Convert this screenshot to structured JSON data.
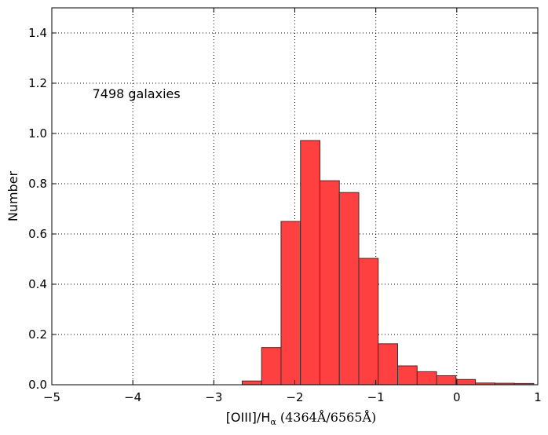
{
  "chart_data": {
    "type": "bar",
    "subtype": "histogram",
    "bin_edges": [
      -2.65,
      -2.41,
      -2.17,
      -1.93,
      -1.69,
      -1.45,
      -1.21,
      -0.97,
      -0.73,
      -0.49,
      -0.25,
      -0.01,
      0.23,
      0.47,
      0.71,
      0.95
    ],
    "values": [
      0.015,
      0.148,
      0.65,
      0.972,
      0.812,
      0.765,
      0.503,
      0.163,
      0.075,
      0.052,
      0.036,
      0.021,
      0.007,
      0.006,
      0.005
    ],
    "bar_color": "#ff4040",
    "edge_color": "#333333",
    "xlim": [
      -5,
      1
    ],
    "ylim": [
      0,
      1.5
    ],
    "xticks": [
      -5,
      -4,
      -3,
      -2,
      -1,
      0,
      1
    ],
    "yticks": [
      0.0,
      0.2,
      0.4,
      0.6,
      0.8,
      1.0,
      1.2,
      1.4
    ],
    "xtick_labels": [
      "−5",
      "−4",
      "−3",
      "−2",
      "−1",
      "0",
      "1"
    ],
    "ytick_labels": [
      "0.0",
      "0.2",
      "0.4",
      "0.6",
      "0.8",
      "1.0",
      "1.2",
      "1.4"
    ],
    "xlabel": "[OIII]/Hα (4364Å/6565Å)",
    "xlabel_parts": {
      "main": "[OIII]/H",
      "sub": "α",
      "paren": " (4364Å/6565Å)"
    },
    "ylabel": "Number",
    "grid": true,
    "annotation": {
      "text": "7498 galaxies",
      "x": -4.5,
      "y": 1.16
    }
  }
}
